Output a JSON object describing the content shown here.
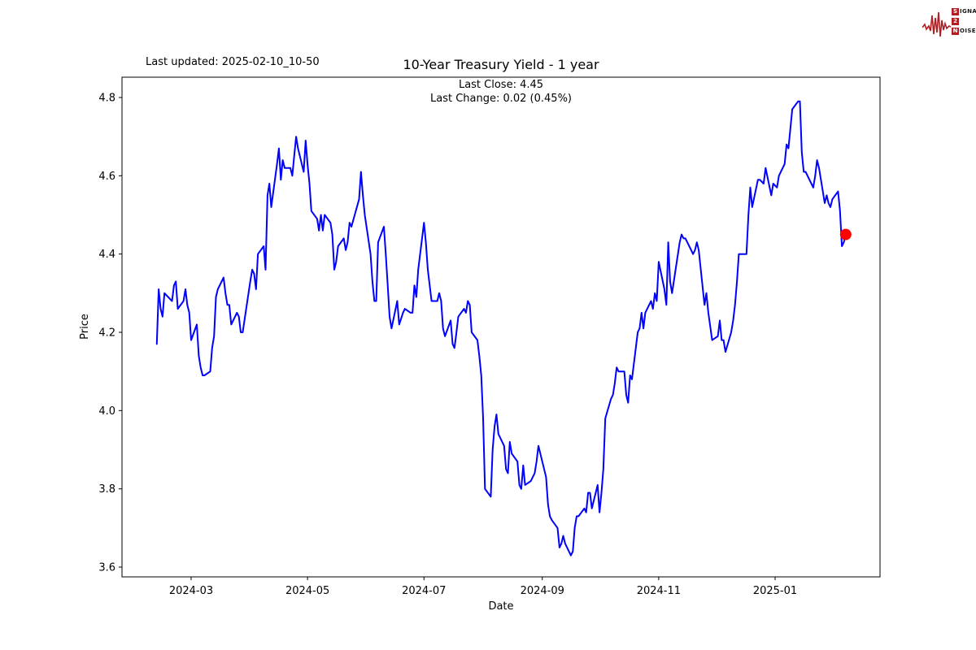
{
  "header": {
    "last_updated": "Last updated: 2025-02-10_10-50",
    "title": "10-Year Treasury Yield - 1 year"
  },
  "logo": {
    "word1_initial": "S",
    "word1_rest": "IGNAL",
    "middle": "2",
    "word2_initial": "N",
    "word2_rest": "OISE",
    "color": "#b01e23"
  },
  "chart_data": {
    "type": "line",
    "title": "10-Year Treasury Yield - 1 year",
    "subtitle_line1": "Last Close: 4.45",
    "subtitle_line2": "Last Change: 0.02 (0.45%)",
    "xlabel": "Date",
    "ylabel": "Price",
    "line_color": "#0000ff",
    "marker_color": "#ff0000",
    "background": "#ffffff",
    "grid": false,
    "legend": "none",
    "ylim": [
      3.57,
      4.85
    ],
    "y_ticks": [
      {
        "value": 4.8,
        "label": "4.8"
      },
      {
        "value": 4.6,
        "label": "4.6"
      },
      {
        "value": 4.4,
        "label": "4.4"
      },
      {
        "value": 4.2,
        "label": "4.2"
      },
      {
        "value": 4.0,
        "label": "4.0"
      },
      {
        "value": 3.8,
        "label": "3.8"
      },
      {
        "value": 3.6,
        "label": "3.6"
      }
    ],
    "x_ticks": [
      {
        "date": "2024-03-01",
        "label": "2024-03"
      },
      {
        "date": "2024-05-01",
        "label": "2024-05"
      },
      {
        "date": "2024-07-01",
        "label": "2024-07"
      },
      {
        "date": "2024-09-01",
        "label": "2024-09"
      },
      {
        "date": "2024-11-01",
        "label": "2024-11"
      },
      {
        "date": "2025-01-01",
        "label": "2025-01"
      }
    ],
    "last_point_marker": {
      "date": "2025-02-07",
      "value": 4.45
    },
    "series": [
      {
        "name": "10-Year Treasury Yield",
        "points": [
          [
            "2024-02-12",
            4.17
          ],
          [
            "2024-02-13",
            4.31
          ],
          [
            "2024-02-14",
            4.26
          ],
          [
            "2024-02-15",
            4.24
          ],
          [
            "2024-02-16",
            4.3
          ],
          [
            "2024-02-20",
            4.28
          ],
          [
            "2024-02-21",
            4.32
          ],
          [
            "2024-02-22",
            4.33
          ],
          [
            "2024-02-23",
            4.26
          ],
          [
            "2024-02-26",
            4.28
          ],
          [
            "2024-02-27",
            4.31
          ],
          [
            "2024-02-28",
            4.27
          ],
          [
            "2024-02-29",
            4.25
          ],
          [
            "2024-03-01",
            4.18
          ],
          [
            "2024-03-04",
            4.22
          ],
          [
            "2024-03-05",
            4.14
          ],
          [
            "2024-03-06",
            4.11
          ],
          [
            "2024-03-07",
            4.09
          ],
          [
            "2024-03-08",
            4.09
          ],
          [
            "2024-03-11",
            4.1
          ],
          [
            "2024-03-12",
            4.16
          ],
          [
            "2024-03-13",
            4.19
          ],
          [
            "2024-03-14",
            4.29
          ],
          [
            "2024-03-15",
            4.31
          ],
          [
            "2024-03-18",
            4.34
          ],
          [
            "2024-03-19",
            4.3
          ],
          [
            "2024-03-20",
            4.27
          ],
          [
            "2024-03-21",
            4.27
          ],
          [
            "2024-03-22",
            4.22
          ],
          [
            "2024-03-25",
            4.25
          ],
          [
            "2024-03-26",
            4.24
          ],
          [
            "2024-03-27",
            4.2
          ],
          [
            "2024-03-28",
            4.2
          ],
          [
            "2024-04-01",
            4.33
          ],
          [
            "2024-04-02",
            4.36
          ],
          [
            "2024-04-03",
            4.35
          ],
          [
            "2024-04-04",
            4.31
          ],
          [
            "2024-04-05",
            4.4
          ],
          [
            "2024-04-08",
            4.42
          ],
          [
            "2024-04-09",
            4.36
          ],
          [
            "2024-04-10",
            4.55
          ],
          [
            "2024-04-11",
            4.58
          ],
          [
            "2024-04-12",
            4.52
          ],
          [
            "2024-04-15",
            4.63
          ],
          [
            "2024-04-16",
            4.67
          ],
          [
            "2024-04-17",
            4.59
          ],
          [
            "2024-04-18",
            4.64
          ],
          [
            "2024-04-19",
            4.62
          ],
          [
            "2024-04-22",
            4.62
          ],
          [
            "2024-04-23",
            4.6
          ],
          [
            "2024-04-24",
            4.65
          ],
          [
            "2024-04-25",
            4.7
          ],
          [
            "2024-04-26",
            4.67
          ],
          [
            "2024-04-29",
            4.61
          ],
          [
            "2024-04-30",
            4.69
          ],
          [
            "2024-05-01",
            4.63
          ],
          [
            "2024-05-02",
            4.58
          ],
          [
            "2024-05-03",
            4.51
          ],
          [
            "2024-05-06",
            4.49
          ],
          [
            "2024-05-07",
            4.46
          ],
          [
            "2024-05-08",
            4.5
          ],
          [
            "2024-05-09",
            4.46
          ],
          [
            "2024-05-10",
            4.5
          ],
          [
            "2024-05-13",
            4.48
          ],
          [
            "2024-05-14",
            4.45
          ],
          [
            "2024-05-15",
            4.36
          ],
          [
            "2024-05-16",
            4.38
          ],
          [
            "2024-05-17",
            4.42
          ],
          [
            "2024-05-20",
            4.44
          ],
          [
            "2024-05-21",
            4.41
          ],
          [
            "2024-05-22",
            4.43
          ],
          [
            "2024-05-23",
            4.48
          ],
          [
            "2024-05-24",
            4.47
          ],
          [
            "2024-05-28",
            4.54
          ],
          [
            "2024-05-29",
            4.61
          ],
          [
            "2024-05-30",
            4.55
          ],
          [
            "2024-05-31",
            4.5
          ],
          [
            "2024-06-03",
            4.4
          ],
          [
            "2024-06-04",
            4.33
          ],
          [
            "2024-06-05",
            4.28
          ],
          [
            "2024-06-06",
            4.28
          ],
          [
            "2024-06-07",
            4.43
          ],
          [
            "2024-06-10",
            4.47
          ],
          [
            "2024-06-11",
            4.4
          ],
          [
            "2024-06-12",
            4.32
          ],
          [
            "2024-06-13",
            4.24
          ],
          [
            "2024-06-14",
            4.21
          ],
          [
            "2024-06-17",
            4.28
          ],
          [
            "2024-06-18",
            4.22
          ],
          [
            "2024-06-20",
            4.25
          ],
          [
            "2024-06-21",
            4.26
          ],
          [
            "2024-06-24",
            4.25
          ],
          [
            "2024-06-25",
            4.25
          ],
          [
            "2024-06-26",
            4.32
          ],
          [
            "2024-06-27",
            4.29
          ],
          [
            "2024-06-28",
            4.36
          ],
          [
            "2024-07-01",
            4.48
          ],
          [
            "2024-07-02",
            4.43
          ],
          [
            "2024-07-03",
            4.36
          ],
          [
            "2024-07-05",
            4.28
          ],
          [
            "2024-07-08",
            4.28
          ],
          [
            "2024-07-09",
            4.3
          ],
          [
            "2024-07-10",
            4.28
          ],
          [
            "2024-07-11",
            4.21
          ],
          [
            "2024-07-12",
            4.19
          ],
          [
            "2024-07-15",
            4.23
          ],
          [
            "2024-07-16",
            4.17
          ],
          [
            "2024-07-17",
            4.16
          ],
          [
            "2024-07-18",
            4.2
          ],
          [
            "2024-07-19",
            4.24
          ],
          [
            "2024-07-22",
            4.26
          ],
          [
            "2024-07-23",
            4.25
          ],
          [
            "2024-07-24",
            4.28
          ],
          [
            "2024-07-25",
            4.27
          ],
          [
            "2024-07-26",
            4.2
          ],
          [
            "2024-07-29",
            4.18
          ],
          [
            "2024-07-30",
            4.14
          ],
          [
            "2024-07-31",
            4.09
          ],
          [
            "2024-08-01",
            3.98
          ],
          [
            "2024-08-02",
            3.8
          ],
          [
            "2024-08-05",
            3.78
          ],
          [
            "2024-08-06",
            3.9
          ],
          [
            "2024-08-07",
            3.96
          ],
          [
            "2024-08-08",
            3.99
          ],
          [
            "2024-08-09",
            3.94
          ],
          [
            "2024-08-12",
            3.91
          ],
          [
            "2024-08-13",
            3.85
          ],
          [
            "2024-08-14",
            3.84
          ],
          [
            "2024-08-15",
            3.92
          ],
          [
            "2024-08-16",
            3.89
          ],
          [
            "2024-08-19",
            3.87
          ],
          [
            "2024-08-20",
            3.81
          ],
          [
            "2024-08-21",
            3.8
          ],
          [
            "2024-08-22",
            3.86
          ],
          [
            "2024-08-23",
            3.81
          ],
          [
            "2024-08-26",
            3.82
          ],
          [
            "2024-08-27",
            3.83
          ],
          [
            "2024-08-28",
            3.84
          ],
          [
            "2024-08-29",
            3.87
          ],
          [
            "2024-08-30",
            3.91
          ],
          [
            "2024-09-03",
            3.83
          ],
          [
            "2024-09-04",
            3.76
          ],
          [
            "2024-09-05",
            3.73
          ],
          [
            "2024-09-06",
            3.72
          ],
          [
            "2024-09-09",
            3.7
          ],
          [
            "2024-09-10",
            3.65
          ],
          [
            "2024-09-11",
            3.66
          ],
          [
            "2024-09-12",
            3.68
          ],
          [
            "2024-09-13",
            3.66
          ],
          [
            "2024-09-16",
            3.63
          ],
          [
            "2024-09-17",
            3.64
          ],
          [
            "2024-09-18",
            3.7
          ],
          [
            "2024-09-19",
            3.73
          ],
          [
            "2024-09-20",
            3.73
          ],
          [
            "2024-09-23",
            3.75
          ],
          [
            "2024-09-24",
            3.74
          ],
          [
            "2024-09-25",
            3.79
          ],
          [
            "2024-09-26",
            3.79
          ],
          [
            "2024-09-27",
            3.75
          ],
          [
            "2024-09-30",
            3.81
          ],
          [
            "2024-10-01",
            3.74
          ],
          [
            "2024-10-02",
            3.79
          ],
          [
            "2024-10-03",
            3.85
          ],
          [
            "2024-10-04",
            3.98
          ],
          [
            "2024-10-07",
            4.03
          ],
          [
            "2024-10-08",
            4.04
          ],
          [
            "2024-10-09",
            4.07
          ],
          [
            "2024-10-10",
            4.11
          ],
          [
            "2024-10-11",
            4.1
          ],
          [
            "2024-10-14",
            4.1
          ],
          [
            "2024-10-15",
            4.04
          ],
          [
            "2024-10-16",
            4.02
          ],
          [
            "2024-10-17",
            4.09
          ],
          [
            "2024-10-18",
            4.08
          ],
          [
            "2024-10-21",
            4.2
          ],
          [
            "2024-10-22",
            4.21
          ],
          [
            "2024-10-23",
            4.25
          ],
          [
            "2024-10-24",
            4.21
          ],
          [
            "2024-10-25",
            4.25
          ],
          [
            "2024-10-28",
            4.28
          ],
          [
            "2024-10-29",
            4.26
          ],
          [
            "2024-10-30",
            4.3
          ],
          [
            "2024-10-31",
            4.28
          ],
          [
            "2024-11-01",
            4.38
          ],
          [
            "2024-11-04",
            4.31
          ],
          [
            "2024-11-05",
            4.27
          ],
          [
            "2024-11-06",
            4.43
          ],
          [
            "2024-11-07",
            4.33
          ],
          [
            "2024-11-08",
            4.3
          ],
          [
            "2024-11-12",
            4.43
          ],
          [
            "2024-11-13",
            4.45
          ],
          [
            "2024-11-14",
            4.44
          ],
          [
            "2024-11-15",
            4.44
          ],
          [
            "2024-11-18",
            4.41
          ],
          [
            "2024-11-19",
            4.4
          ],
          [
            "2024-11-20",
            4.41
          ],
          [
            "2024-11-21",
            4.43
          ],
          [
            "2024-11-22",
            4.41
          ],
          [
            "2024-11-25",
            4.27
          ],
          [
            "2024-11-26",
            4.3
          ],
          [
            "2024-11-27",
            4.25
          ],
          [
            "2024-11-29",
            4.18
          ],
          [
            "2024-12-02",
            4.19
          ],
          [
            "2024-12-03",
            4.23
          ],
          [
            "2024-12-04",
            4.18
          ],
          [
            "2024-12-05",
            4.18
          ],
          [
            "2024-12-06",
            4.15
          ],
          [
            "2024-12-09",
            4.2
          ],
          [
            "2024-12-10",
            4.23
          ],
          [
            "2024-12-11",
            4.27
          ],
          [
            "2024-12-12",
            4.33
          ],
          [
            "2024-12-13",
            4.4
          ],
          [
            "2024-12-16",
            4.4
          ],
          [
            "2024-12-17",
            4.4
          ],
          [
            "2024-12-18",
            4.5
          ],
          [
            "2024-12-19",
            4.57
          ],
          [
            "2024-12-20",
            4.52
          ],
          [
            "2024-12-23",
            4.59
          ],
          [
            "2024-12-24",
            4.59
          ],
          [
            "2024-12-26",
            4.58
          ],
          [
            "2024-12-27",
            4.62
          ],
          [
            "2024-12-30",
            4.55
          ],
          [
            "2024-12-31",
            4.58
          ],
          [
            "2025-01-02",
            4.57
          ],
          [
            "2025-01-03",
            4.6
          ],
          [
            "2025-01-06",
            4.63
          ],
          [
            "2025-01-07",
            4.68
          ],
          [
            "2025-01-08",
            4.67
          ],
          [
            "2025-01-10",
            4.77
          ],
          [
            "2025-01-13",
            4.79
          ],
          [
            "2025-01-14",
            4.79
          ],
          [
            "2025-01-15",
            4.66
          ],
          [
            "2025-01-16",
            4.61
          ],
          [
            "2025-01-17",
            4.61
          ],
          [
            "2025-01-21",
            4.57
          ],
          [
            "2025-01-22",
            4.6
          ],
          [
            "2025-01-23",
            4.64
          ],
          [
            "2025-01-24",
            4.62
          ],
          [
            "2025-01-27",
            4.53
          ],
          [
            "2025-01-28",
            4.55
          ],
          [
            "2025-01-29",
            4.53
          ],
          [
            "2025-01-30",
            4.52
          ],
          [
            "2025-01-31",
            4.54
          ],
          [
            "2025-02-03",
            4.56
          ],
          [
            "2025-02-04",
            4.51
          ],
          [
            "2025-02-05",
            4.42
          ],
          [
            "2025-02-06",
            4.43
          ],
          [
            "2025-02-07",
            4.45
          ]
        ]
      }
    ]
  }
}
